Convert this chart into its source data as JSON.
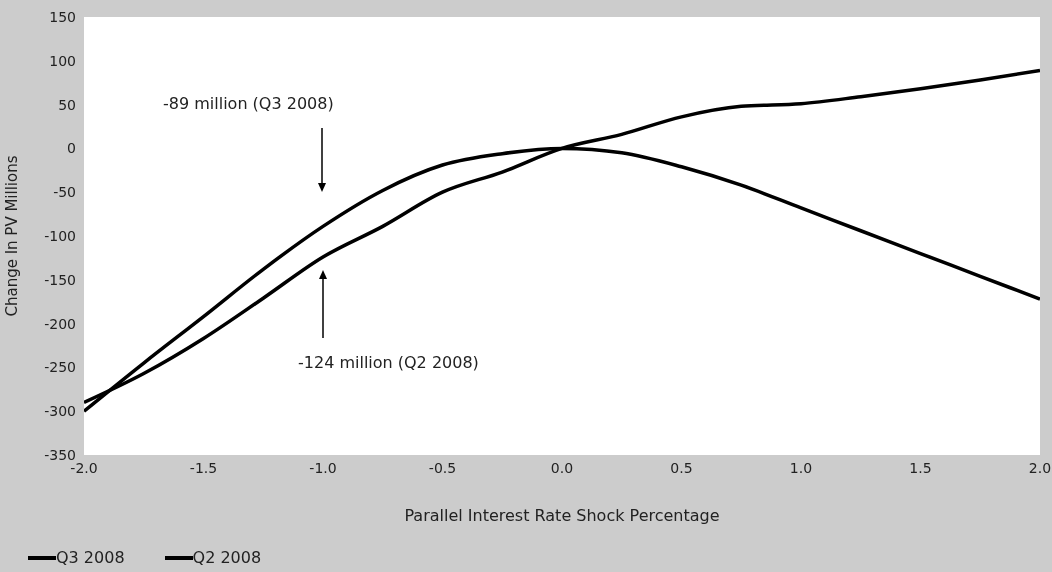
{
  "chart_data": {
    "type": "line",
    "xlabel": "Parallel Interest Rate Shock Percentage",
    "ylabel": "Change In PV Millions",
    "x": [
      -2,
      -1.75,
      -1.5,
      -1.25,
      -1,
      -0.75,
      -0.5,
      -0.25,
      0,
      0.25,
      0.5,
      0.75,
      1,
      1.25,
      1.5,
      1.75,
      2
    ],
    "series": [
      {
        "name": "Q3 2008",
        "color": "#000000",
        "values": [
          -300,
          -245,
          -192,
          -138,
          -89,
          -48,
          -19,
          -6,
          0,
          -5,
          -21,
          -42,
          -68,
          -94,
          -120,
          -146,
          -172
        ]
      },
      {
        "name": "Q2 2008",
        "color": "#000000",
        "values": [
          -290,
          -257,
          -217,
          -171,
          -124,
          -89,
          -50,
          -27,
          0,
          16,
          36,
          48,
          51,
          59,
          68,
          78,
          89
        ]
      }
    ],
    "xlim": [
      -2,
      2
    ],
    "xticks": [
      {
        "value": -2,
        "label": "-2.0"
      },
      {
        "value": -1.5,
        "label": "-1.5"
      },
      {
        "value": -1,
        "label": "-1.0"
      },
      {
        "value": -0.5,
        "label": "-0.5"
      },
      {
        "value": 0,
        "label": "0.0"
      },
      {
        "value": 0.5,
        "label": "0.5"
      },
      {
        "value": 1,
        "label": "1.0"
      },
      {
        "value": 1.5,
        "label": "1.5"
      },
      {
        "value": 2,
        "label": "2.0"
      }
    ],
    "ylim": [
      -350,
      150
    ],
    "yticks": [
      -350,
      -300,
      -250,
      -200,
      -150,
      -100,
      -50,
      0,
      50,
      100,
      150
    ],
    "annotations": [
      "-89 million (Q3 2008)",
      "-124 million (Q2 2008)"
    ],
    "grid": false,
    "legend": "bottom left",
    "marker": "none",
    "line_style": "solid"
  }
}
